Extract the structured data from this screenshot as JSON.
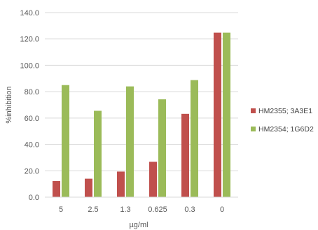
{
  "chart_data": {
    "type": "bar",
    "categories": [
      "5",
      "2.5",
      "1.3",
      "0.625",
      "0.3",
      "0"
    ],
    "series": [
      {
        "name": "HM2355; 3A3E1",
        "color": "#c0504d",
        "values": [
          12.2,
          14.0,
          19.4,
          26.8,
          63.2,
          124.8
        ]
      },
      {
        "name": "HM2354; 1G6D2",
        "color": "#9bbb59",
        "values": [
          85.0,
          65.5,
          84.0,
          74.2,
          88.8,
          124.8
        ]
      }
    ],
    "xlabel": "µg/ml",
    "ylabel": "%inhibition",
    "ylim": [
      0,
      140
    ],
    "yticks": [
      "0.0",
      "20.0",
      "40.0",
      "60.0",
      "80.0",
      "100.0",
      "120.0",
      "140.0"
    ],
    "ytick_values": [
      0,
      20,
      40,
      60,
      80,
      100,
      120,
      140
    ],
    "grid": true,
    "legend_position": "right"
  }
}
